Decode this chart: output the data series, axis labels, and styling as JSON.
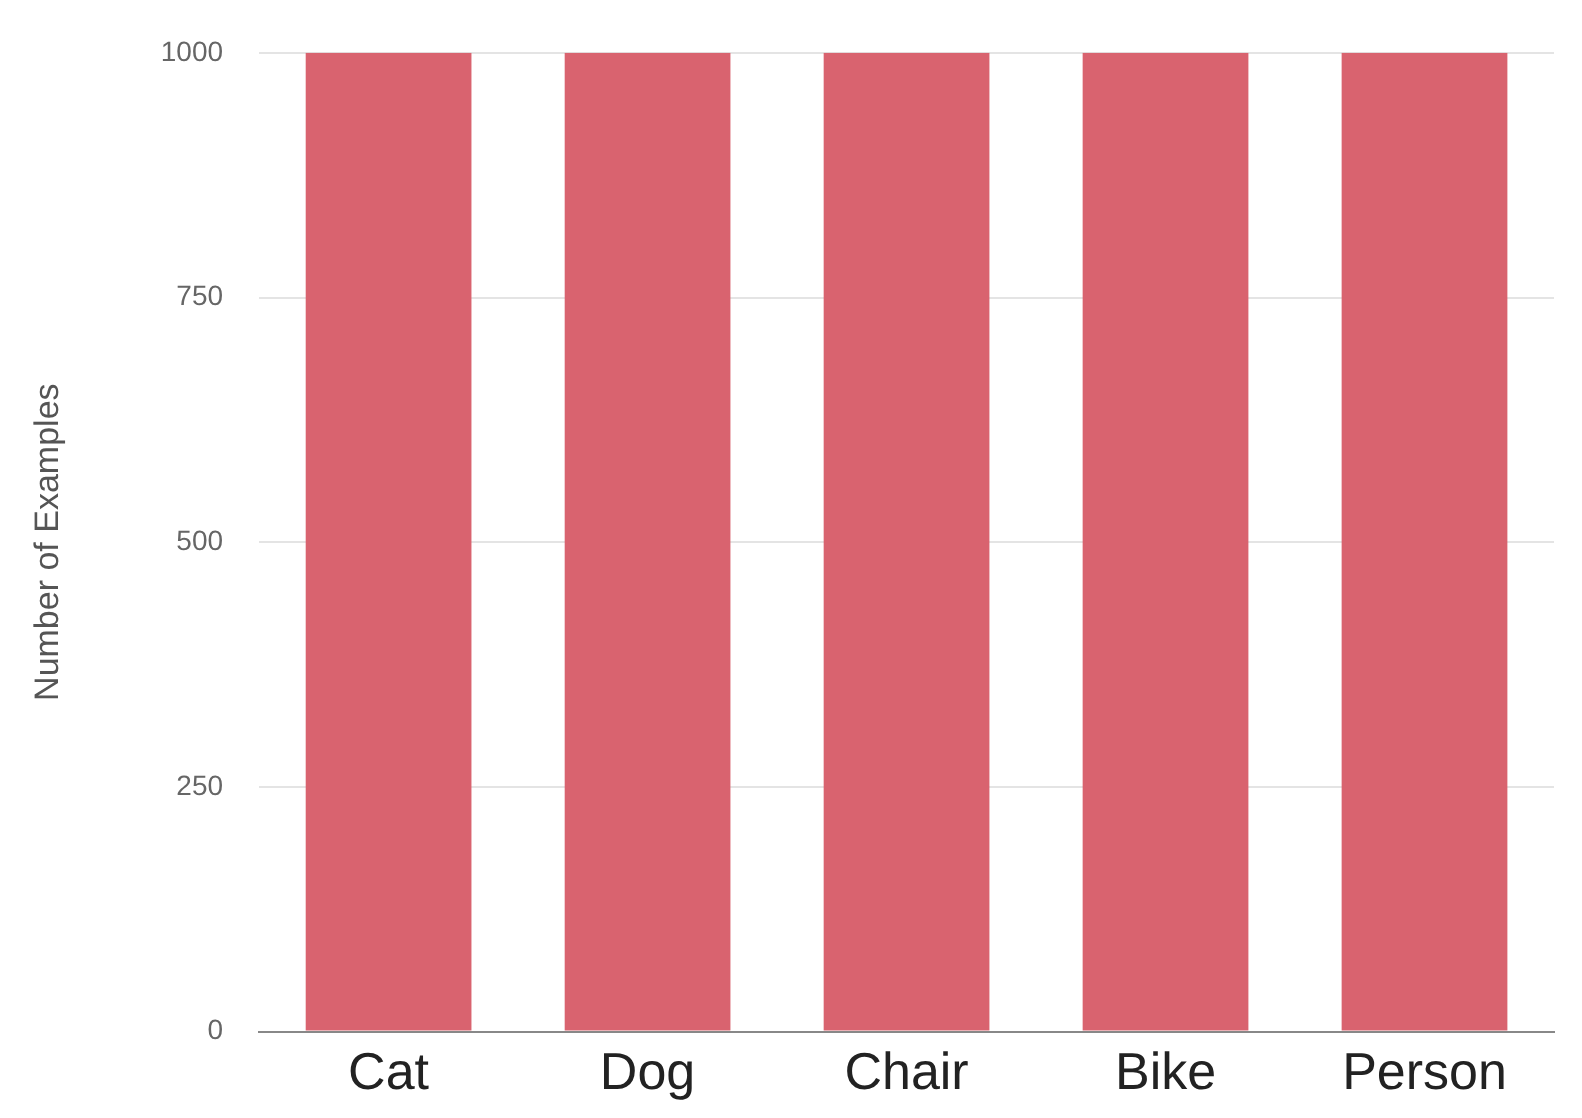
{
  "chart_data": {
    "type": "bar",
    "ylabel": "Number of Examples",
    "categories": [
      "Cat",
      "Dog",
      "Chair",
      "Bike",
      "Person"
    ],
    "values": [
      1000,
      1000,
      1000,
      1000,
      1000
    ],
    "color": "#d9636f",
    "ylim": [
      0,
      1000
    ],
    "yticks": [
      0,
      250,
      500,
      750,
      1000
    ],
    "grid": "y"
  }
}
